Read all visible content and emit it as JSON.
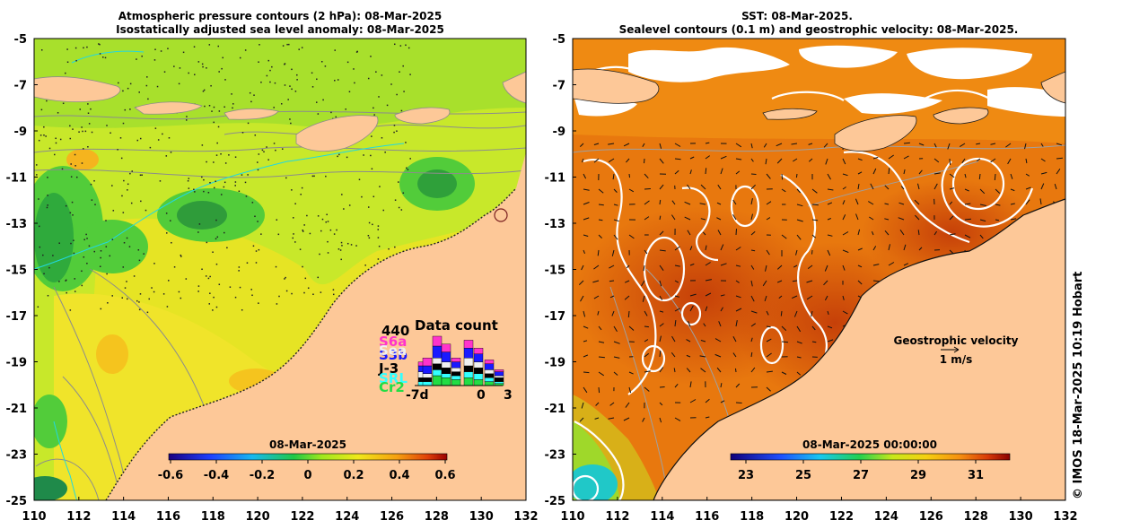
{
  "left_panel": {
    "title_line1": "Atmospheric pressure contours (2 hPa): 08-Mar-2025",
    "title_line2": "Isostatically adjusted sea level anomaly: 08-Mar-2025",
    "colorbar_date": "08-Mar-2025",
    "colorbar_ticks": [
      "-0.6",
      "-0.4",
      "-0.2",
      "0",
      "0.2",
      "0.4",
      "0.6"
    ],
    "data_count": {
      "title": "Data count",
      "max_label": "440",
      "satellites": [
        {
          "name": "S6a",
          "color": "#ff33cc"
        },
        {
          "name": "S3b",
          "color": "#1a1aff"
        },
        {
          "name": "Sea",
          "color": "#f0f0f0"
        },
        {
          "name": "J-3",
          "color": "#000000"
        },
        {
          "name": "SRL",
          "color": "#33ffff"
        },
        {
          "name": "Cr2",
          "color": "#22dd44"
        }
      ],
      "axis_left": "-7d",
      "axis_mid": "0",
      "axis_right": "3"
    }
  },
  "right_panel": {
    "title_line1": "SST: 08-Mar-2025.",
    "title_line2": "Sealevel contours (0.1 m) and geostrophic velocity: 08-Mar-2025.",
    "colorbar_date": "08-Mar-2025 00:00:00",
    "colorbar_ticks": [
      "23",
      "25",
      "27",
      "29",
      "31"
    ],
    "legend_label": "Geostrophic velocity",
    "legend_scale": "1 m/s"
  },
  "axes": {
    "lat_labels": [
      "-5",
      "-7",
      "-9",
      "-11",
      "-13",
      "-15",
      "-17",
      "-19",
      "-21",
      "-23",
      "-25"
    ],
    "lon_labels": [
      "110",
      "112",
      "114",
      "116",
      "118",
      "120",
      "122",
      "124",
      "126",
      "128",
      "130",
      "132"
    ]
  },
  "copyright": "© IMOS 18-Mar-2025 10:19 Hobart",
  "colors": {
    "land": "#fdc898",
    "contour_grey": "#909090",
    "coast_cyan": "#22d8e0"
  }
}
